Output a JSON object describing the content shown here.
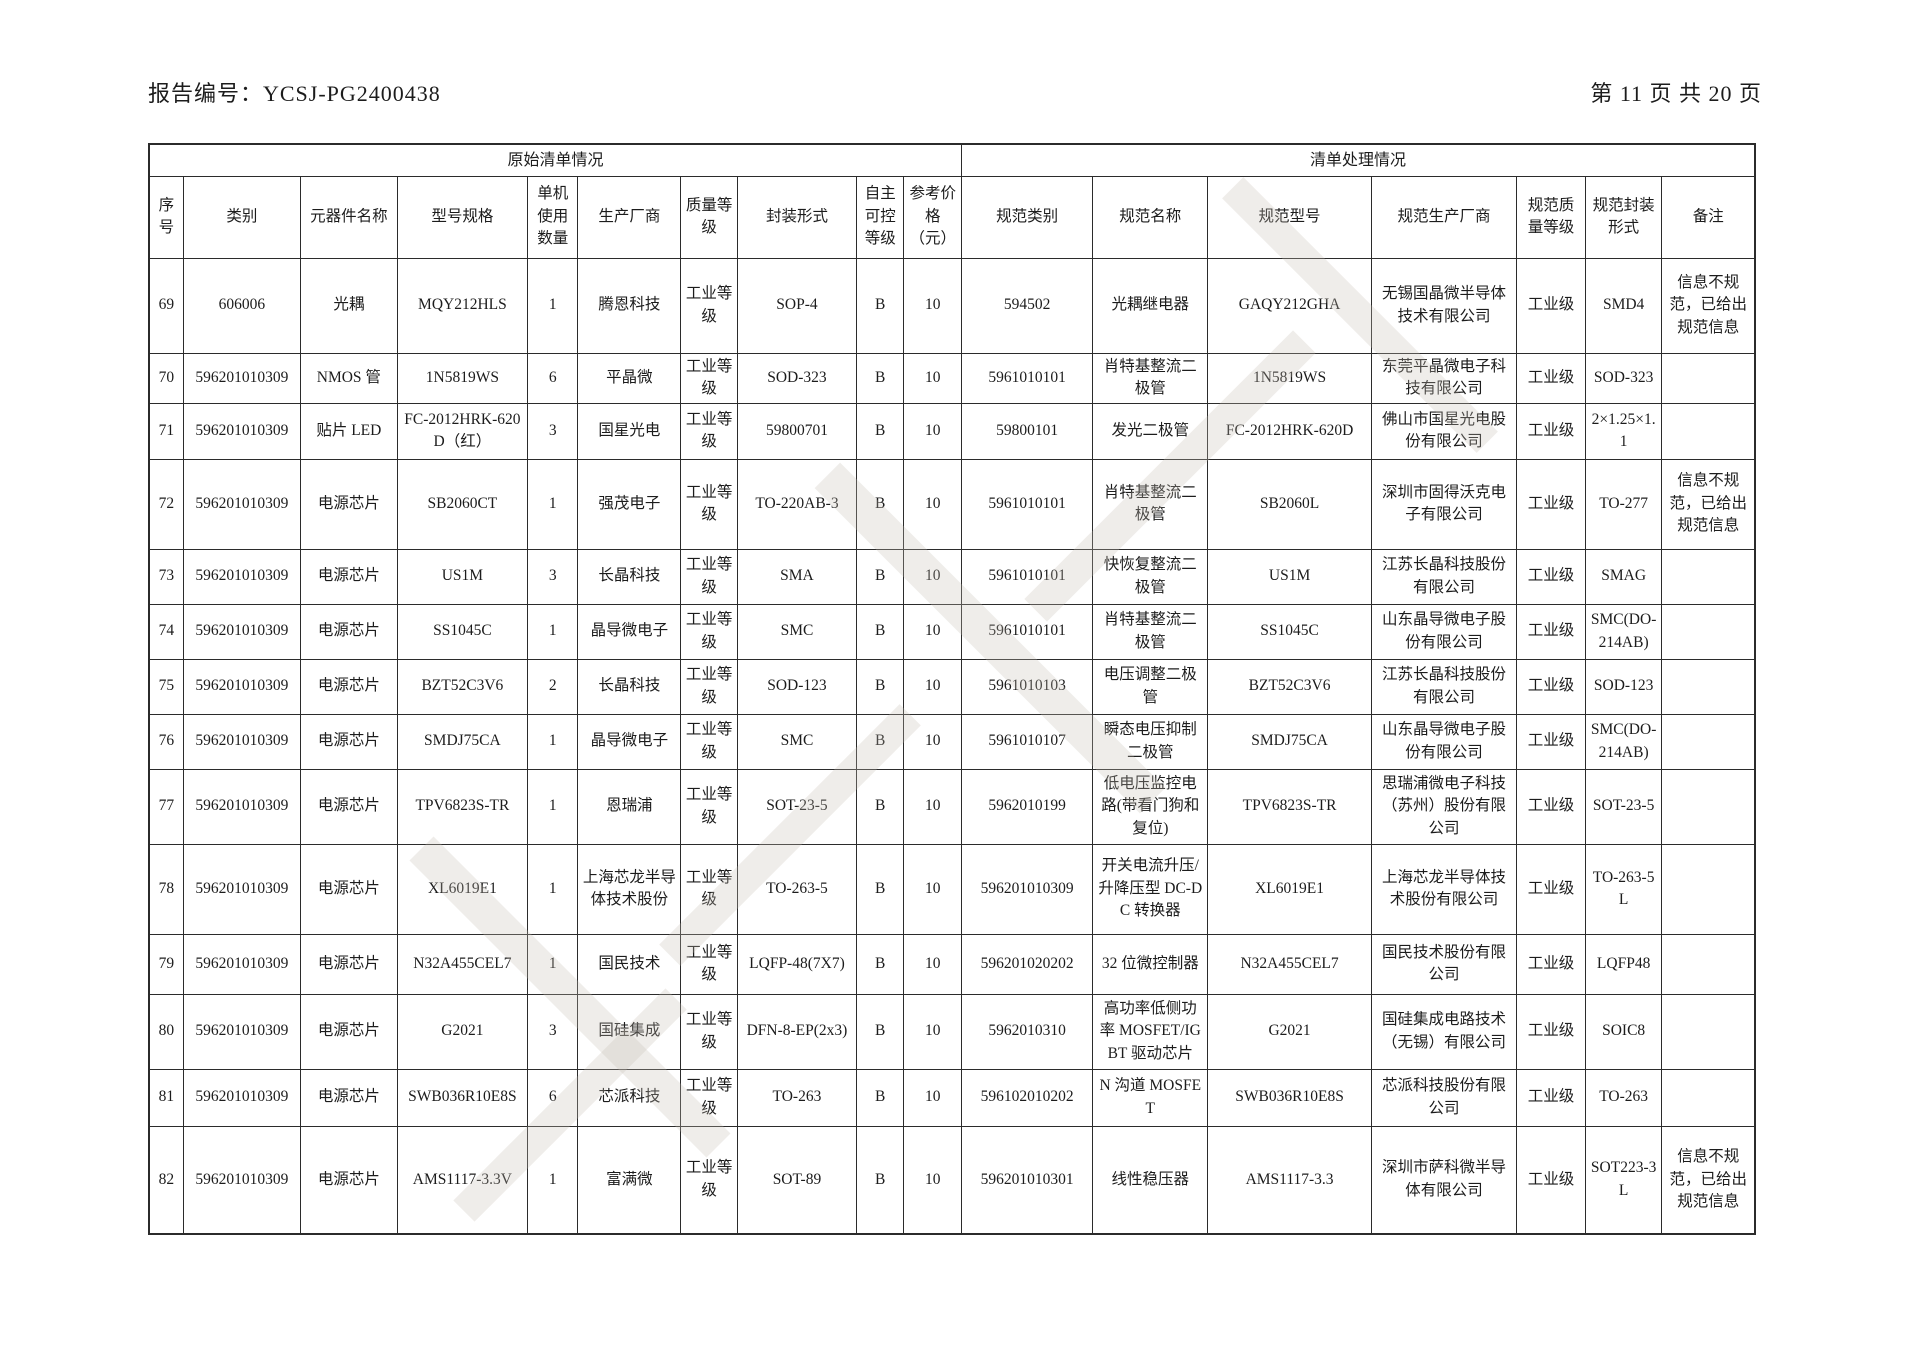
{
  "page": {
    "report_label": "报告编号：YCSJ-PG2400438",
    "page_info": "第 11 页 共 20 页"
  },
  "table": {
    "group_headers": {
      "original": "原始清单情况",
      "processed": "清单处理情况"
    },
    "columns": [
      "序号",
      "类别",
      "元器件名称",
      "型号规格",
      "单机使用数量",
      "生产厂商",
      "质量等级",
      "封装形式",
      "自主可控等级",
      "参考价格（元）",
      "规范类别",
      "规范名称",
      "规范型号",
      "规范生产厂商",
      "规范质量等级",
      "规范封装形式",
      "备注"
    ],
    "rows": [
      [
        "69",
        "606006",
        "光耦",
        "MQY212HLS",
        "1",
        "腾恩科技",
        "工业等级",
        "SOP-4",
        "B",
        "10",
        "594502",
        "光耦继电器",
        "GAQY212GHA",
        "无锡国晶微半导体技术有限公司",
        "工业级",
        "SMD4",
        "信息不规范，已给出规范信息"
      ],
      [
        "70",
        "596201010309",
        "NMOS 管",
        "1N5819WS",
        "6",
        "平晶微",
        "工业等级",
        "SOD-323",
        "B",
        "10",
        "5961010101",
        "肖特基整流二极管",
        "1N5819WS",
        "东莞平晶微电子科技有限公司",
        "工业级",
        "SOD-323",
        ""
      ],
      [
        "71",
        "596201010309",
        "贴片 LED",
        "FC-2012HRK-620D（红）",
        "3",
        "国星光电",
        "工业等级",
        "59800701",
        "B",
        "10",
        "59800101",
        "发光二极管",
        "FC-2012HRK-620D",
        "佛山市国星光电股份有限公司",
        "工业级",
        "2×1.25×1.1",
        ""
      ],
      [
        "72",
        "596201010309",
        "电源芯片",
        "SB2060CT",
        "1",
        "强茂电子",
        "工业等级",
        "TO-220AB-3",
        "B",
        "10",
        "5961010101",
        "肖特基整流二极管",
        "SB2060L",
        "深圳市固得沃克电子有限公司",
        "工业级",
        "TO-277",
        "信息不规范，已给出规范信息"
      ],
      [
        "73",
        "596201010309",
        "电源芯片",
        "US1M",
        "3",
        "长晶科技",
        "工业等级",
        "SMA",
        "B",
        "10",
        "5961010101",
        "快恢复整流二极管",
        "US1M",
        "江苏长晶科技股份有限公司",
        "工业级",
        "SMAG",
        ""
      ],
      [
        "74",
        "596201010309",
        "电源芯片",
        "SS1045C",
        "1",
        "晶导微电子",
        "工业等级",
        "SMC",
        "B",
        "10",
        "5961010101",
        "肖特基整流二极管",
        "SS1045C",
        "山东晶导微电子股份有限公司",
        "工业级",
        "SMC(DO-214AB)",
        ""
      ],
      [
        "75",
        "596201010309",
        "电源芯片",
        "BZT52C3V6",
        "2",
        "长晶科技",
        "工业等级",
        "SOD-123",
        "B",
        "10",
        "5961010103",
        "电压调整二极管",
        "BZT52C3V6",
        "江苏长晶科技股份有限公司",
        "工业级",
        "SOD-123",
        ""
      ],
      [
        "76",
        "596201010309",
        "电源芯片",
        "SMDJ75CA",
        "1",
        "晶导微电子",
        "工业等级",
        "SMC",
        "B",
        "10",
        "5961010107",
        "瞬态电压抑制二极管",
        "SMDJ75CA",
        "山东晶导微电子股份有限公司",
        "工业级",
        "SMC(DO-214AB)",
        ""
      ],
      [
        "77",
        "596201010309",
        "电源芯片",
        "TPV6823S-TR",
        "1",
        "恩瑞浦",
        "工业等级",
        "SOT-23-5",
        "B",
        "10",
        "5962010199",
        "低电压监控电路(带看门狗和复位)",
        "TPV6823S-TR",
        "思瑞浦微电子科技（苏州）股份有限公司",
        "工业级",
        "SOT-23-5",
        ""
      ],
      [
        "78",
        "596201010309",
        "电源芯片",
        "XL6019E1",
        "1",
        "上海芯龙半导体技术股份",
        "工业等级",
        "TO-263-5",
        "B",
        "10",
        "596201010309",
        "开关电流升压/升降压型 DC-DC 转换器",
        "XL6019E1",
        "上海芯龙半导体技术股份有限公司",
        "工业级",
        "TO-263-5L",
        ""
      ],
      [
        "79",
        "596201010309",
        "电源芯片",
        "N32A455CEL7",
        "1",
        "国民技术",
        "工业等级",
        "LQFP-48(7X7)",
        "B",
        "10",
        "596201020202",
        "32 位微控制器",
        "N32A455CEL7",
        "国民技术股份有限公司",
        "工业级",
        "LQFP48",
        ""
      ],
      [
        "80",
        "596201010309",
        "电源芯片",
        "G2021",
        "3",
        "国硅集成",
        "工业等级",
        "DFN-8-EP(2x3)",
        "B",
        "10",
        "5962010310",
        "高功率低侧功率 MOSFET/IGBT 驱动芯片",
        "G2021",
        "国硅集成电路技术（无锡）有限公司",
        "工业级",
        "SOIC8",
        ""
      ],
      [
        "81",
        "596201010309",
        "电源芯片",
        "SWB036R10E8S",
        "6",
        "芯派科技",
        "工业等级",
        "TO-263",
        "B",
        "10",
        "596102010202",
        "N 沟道 MOSFET",
        "SWB036R10E8S",
        "芯派科技股份有限公司",
        "工业级",
        "TO-263",
        ""
      ],
      [
        "82",
        "596201010309",
        "电源芯片",
        "AMS1117-3.3V",
        "1",
        "富满微",
        "工业等级",
        "SOT-89",
        "B",
        "10",
        "596201010301",
        "线性稳压器",
        "AMS1117-3.3",
        "深圳市萨科微半导体有限公司",
        "工业级",
        "SOT223-3L",
        "信息不规范，已给出规范信息"
      ]
    ]
  }
}
